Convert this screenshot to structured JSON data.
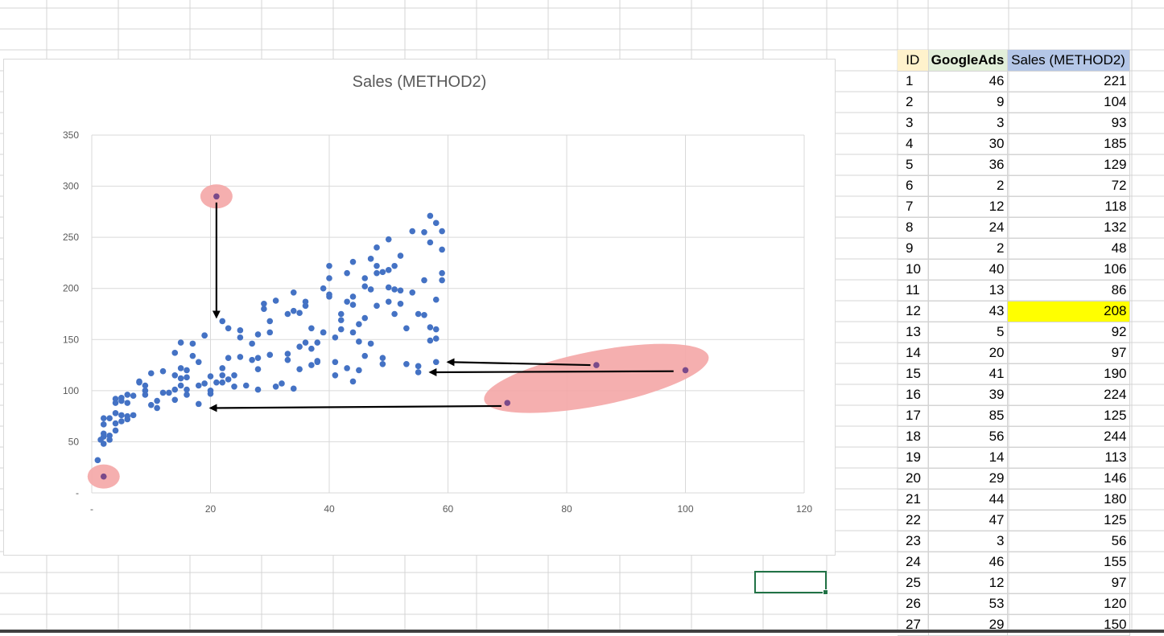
{
  "chart": {
    "title": "Sales (METHOD2)",
    "chart_data": {
      "type": "scatter",
      "title": "Sales (METHOD2)",
      "xlabel": "",
      "ylabel": "",
      "xlim": [
        0,
        120
      ],
      "ylim": [
        0,
        350
      ],
      "x_ticks": [
        "-",
        "20",
        "40",
        "60",
        "80",
        "100",
        "120"
      ],
      "y_ticks": [
        "-",
        "50",
        "100",
        "150",
        "200",
        "250",
        "300",
        "350"
      ],
      "grid": true,
      "marker_color": "#4472c4",
      "highlight_color": "#f4a6a6",
      "arrow_color": "#000000",
      "points": [
        [
          1,
          32
        ],
        [
          1.5,
          52
        ],
        [
          2,
          55
        ],
        [
          2,
          48
        ],
        [
          2,
          58
        ],
        [
          2,
          67
        ],
        [
          2,
          73
        ],
        [
          3,
          56
        ],
        [
          3,
          52
        ],
        [
          3,
          73
        ],
        [
          4,
          61
        ],
        [
          4,
          68
        ],
        [
          4,
          78
        ],
        [
          4,
          88
        ],
        [
          4,
          92
        ],
        [
          5,
          70
        ],
        [
          5,
          76
        ],
        [
          5,
          90
        ],
        [
          5,
          93
        ],
        [
          6,
          72
        ],
        [
          6,
          75
        ],
        [
          6,
          88
        ],
        [
          6,
          96
        ],
        [
          7,
          95
        ],
        [
          7,
          76
        ],
        [
          8,
          109
        ],
        [
          8,
          108
        ],
        [
          9,
          105
        ],
        [
          9,
          100
        ],
        [
          9,
          96
        ],
        [
          10,
          86
        ],
        [
          10,
          117
        ],
        [
          11,
          83
        ],
        [
          11,
          90
        ],
        [
          12,
          119
        ],
        [
          12,
          98
        ],
        [
          13,
          98
        ],
        [
          14,
          91
        ],
        [
          14,
          101
        ],
        [
          14,
          137
        ],
        [
          14,
          115
        ],
        [
          15,
          105
        ],
        [
          15,
          112
        ],
        [
          15,
          122
        ],
        [
          15,
          147
        ],
        [
          16,
          96
        ],
        [
          16,
          101
        ],
        [
          16,
          113
        ],
        [
          16,
          120
        ],
        [
          17,
          146
        ],
        [
          17,
          134
        ],
        [
          18,
          105
        ],
        [
          18,
          128
        ],
        [
          19,
          154
        ],
        [
          19,
          107
        ],
        [
          20,
          100
        ],
        [
          20,
          97
        ],
        [
          20,
          114
        ],
        [
          21,
          108
        ],
        [
          22,
          108
        ],
        [
          22,
          122
        ],
        [
          22,
          115
        ],
        [
          23,
          132
        ],
        [
          23,
          111
        ],
        [
          24,
          104
        ],
        [
          24,
          115
        ],
        [
          25,
          133
        ],
        [
          25,
          152
        ],
        [
          25,
          159
        ],
        [
          26,
          105
        ],
        [
          27,
          130
        ],
        [
          27,
          146
        ],
        [
          28,
          101
        ],
        [
          28,
          121
        ],
        [
          28,
          132
        ],
        [
          28,
          155
        ],
        [
          29,
          185
        ],
        [
          29,
          180
        ],
        [
          30,
          135
        ],
        [
          30,
          168
        ],
        [
          30,
          157
        ],
        [
          31,
          188
        ],
        [
          31,
          104
        ],
        [
          32,
          107
        ],
        [
          33,
          136
        ],
        [
          33,
          175
        ],
        [
          33,
          130
        ],
        [
          34,
          196
        ],
        [
          34,
          178
        ],
        [
          34,
          102
        ],
        [
          35,
          176
        ],
        [
          35,
          143
        ],
        [
          35,
          121
        ],
        [
          36,
          147
        ],
        [
          36,
          183
        ],
        [
          36,
          187
        ],
        [
          37,
          161
        ],
        [
          37,
          141
        ],
        [
          37,
          125
        ],
        [
          38,
          147
        ],
        [
          38,
          129
        ],
        [
          38,
          128
        ],
        [
          39,
          200
        ],
        [
          39,
          157
        ],
        [
          39,
          157
        ],
        [
          40,
          222
        ],
        [
          40,
          210
        ],
        [
          40,
          194
        ],
        [
          40,
          192
        ],
        [
          41,
          152
        ],
        [
          41,
          128
        ],
        [
          41,
          115
        ],
        [
          42,
          175
        ],
        [
          42,
          169
        ],
        [
          42,
          160
        ],
        [
          43,
          215
        ],
        [
          43,
          187
        ],
        [
          43,
          122
        ],
        [
          44,
          226
        ],
        [
          44,
          192
        ],
        [
          44,
          184
        ],
        [
          44,
          157
        ],
        [
          44,
          109
        ],
        [
          45,
          165
        ],
        [
          45,
          148
        ],
        [
          45,
          120
        ],
        [
          46,
          210
        ],
        [
          46,
          202
        ],
        [
          46,
          171
        ],
        [
          46,
          134
        ],
        [
          47,
          229
        ],
        [
          47,
          199
        ],
        [
          47,
          146
        ],
        [
          48,
          183
        ],
        [
          48,
          215
        ],
        [
          48,
          222
        ],
        [
          48,
          240
        ],
        [
          49,
          216
        ],
        [
          49,
          126
        ],
        [
          49,
          132
        ],
        [
          50,
          248
        ],
        [
          50,
          218
        ],
        [
          50,
          201
        ],
        [
          50,
          187
        ],
        [
          51,
          222
        ],
        [
          51,
          199
        ],
        [
          51,
          175
        ],
        [
          52,
          232
        ],
        [
          52,
          198
        ],
        [
          52,
          185
        ],
        [
          53,
          161
        ],
        [
          53,
          126
        ],
        [
          54,
          256
        ],
        [
          54,
          196
        ],
        [
          55,
          175
        ],
        [
          55,
          124
        ],
        [
          56,
          255
        ],
        [
          56,
          208
        ],
        [
          56,
          174
        ],
        [
          57,
          271
        ],
        [
          57,
          245
        ],
        [
          57,
          162
        ],
        [
          57,
          149
        ],
        [
          58,
          264
        ],
        [
          58,
          189
        ],
        [
          58,
          160
        ],
        [
          58,
          151
        ],
        [
          59,
          256
        ],
        [
          59,
          215
        ],
        [
          59,
          208
        ],
        [
          59,
          238
        ],
        [
          2,
          16
        ],
        [
          21,
          290
        ],
        [
          22,
          168
        ],
        [
          23,
          161
        ],
        [
          19,
          154
        ],
        [
          18,
          87
        ],
        [
          55,
          118
        ],
        [
          58,
          128
        ],
        [
          70,
          88
        ],
        [
          85,
          125
        ],
        [
          100,
          120
        ]
      ],
      "highlighted": [
        [
          2,
          16
        ],
        [
          21,
          290
        ],
        [
          70,
          88
        ],
        [
          85,
          125
        ],
        [
          100,
          120
        ]
      ],
      "arrows": [
        {
          "from": [
            21,
            284
          ],
          "to": [
            21,
            172
          ]
        },
        {
          "from": [
            84,
            125
          ],
          "to": [
            60,
            128
          ]
        },
        {
          "from": [
            98,
            119
          ],
          "to": [
            57,
            118
          ]
        },
        {
          "from": [
            69,
            85
          ],
          "to": [
            20,
            83
          ]
        }
      ]
    }
  },
  "table": {
    "headers": {
      "id": "ID",
      "googleads": "GoogleAds",
      "sales": "Sales (METHOD2)"
    },
    "header_colors": {
      "id": "#fff2cc",
      "googleads": "#e2efda",
      "sales": "#b4c6e7"
    },
    "highlight_color": "#ffff00",
    "rows": [
      {
        "id": "1",
        "ga": "46",
        "sales": "221"
      },
      {
        "id": "2",
        "ga": "9",
        "sales": "104"
      },
      {
        "id": "3",
        "ga": "3",
        "sales": "93"
      },
      {
        "id": "4",
        "ga": "30",
        "sales": "185"
      },
      {
        "id": "5",
        "ga": "36",
        "sales": "129"
      },
      {
        "id": "6",
        "ga": "2",
        "sales": "72"
      },
      {
        "id": "7",
        "ga": "12",
        "sales": "118"
      },
      {
        "id": "8",
        "ga": "24",
        "sales": "132"
      },
      {
        "id": "9",
        "ga": "2",
        "sales": "48"
      },
      {
        "id": "10",
        "ga": "40",
        "sales": "106"
      },
      {
        "id": "11",
        "ga": "13",
        "sales": "86"
      },
      {
        "id": "12",
        "ga": "43",
        "sales": "208",
        "highlight": true
      },
      {
        "id": "13",
        "ga": "5",
        "sales": "92"
      },
      {
        "id": "14",
        "ga": "20",
        "sales": "97"
      },
      {
        "id": "15",
        "ga": "41",
        "sales": "190"
      },
      {
        "id": "16",
        "ga": "39",
        "sales": "224"
      },
      {
        "id": "17",
        "ga": "85",
        "sales": "125"
      },
      {
        "id": "18",
        "ga": "56",
        "sales": "244"
      },
      {
        "id": "19",
        "ga": "14",
        "sales": "113"
      },
      {
        "id": "20",
        "ga": "29",
        "sales": "146"
      },
      {
        "id": "21",
        "ga": "44",
        "sales": "180"
      },
      {
        "id": "22",
        "ga": "47",
        "sales": "125"
      },
      {
        "id": "23",
        "ga": "3",
        "sales": "56"
      },
      {
        "id": "24",
        "ga": "46",
        "sales": "155"
      },
      {
        "id": "25",
        "ga": "12",
        "sales": "97"
      },
      {
        "id": "26",
        "ga": "53",
        "sales": "120"
      },
      {
        "id": "27",
        "ga": "29",
        "sales": "150"
      }
    ]
  },
  "selection": {
    "cell_border_color": "#217346"
  }
}
